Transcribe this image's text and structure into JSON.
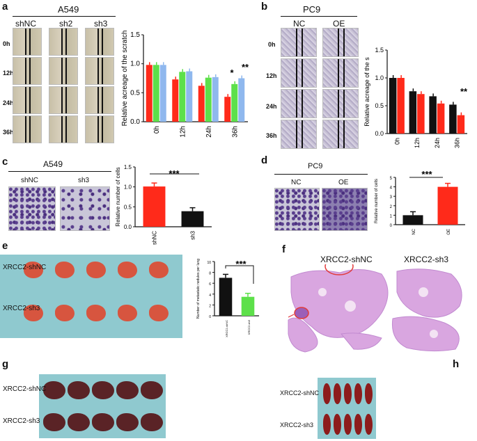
{
  "panels": {
    "a": {
      "label": "a",
      "title": "A549",
      "cols": [
        "shNC",
        "sh2",
        "sh3"
      ],
      "rows": [
        "0h",
        "12h",
        "24h",
        "36h"
      ]
    },
    "b": {
      "label": "b",
      "title": "PC9",
      "cols": [
        "NC",
        "OE"
      ],
      "rows": [
        "0h",
        "12h",
        "24h",
        "36h"
      ]
    },
    "c": {
      "label": "c",
      "title": "A549",
      "cols": [
        "shNC",
        "sh3"
      ]
    },
    "d": {
      "label": "d",
      "title": "PC9",
      "cols": [
        "NC",
        "OE"
      ]
    },
    "e": {
      "label": "e",
      "rows": [
        "XRCC2-shNC",
        "XRCC2-sh3"
      ]
    },
    "f": {
      "label": "f",
      "cols": [
        "XRCC2-shNC",
        "XRCC2-sh3"
      ]
    },
    "g": {
      "label": "g",
      "rows": [
        "XRCC2-shNC",
        "XRCC2-sh3"
      ]
    },
    "h": {
      "label": "h",
      "rows": [
        "XRCC2-shNC",
        "XRCC2-sh3"
      ]
    }
  },
  "chart_data": [
    {
      "id": "a",
      "type": "bar",
      "ylabel": "Relative acreage of the scratch",
      "categories": [
        "0h",
        "12h",
        "24h",
        "36h"
      ],
      "series": [
        {
          "values": [
            0.98,
            0.73,
            0.62,
            0.43
          ],
          "color": "#ff2a1a"
        },
        {
          "values": [
            0.98,
            0.86,
            0.76,
            0.65
          ],
          "color": "#5de04a"
        },
        {
          "values": [
            0.98,
            0.87,
            0.77,
            0.75
          ],
          "color": "#8fb8ee"
        }
      ],
      "ylim": [
        0,
        1.5
      ],
      "yticks": [
        "0.0",
        "0.5",
        "1.0",
        "1.5"
      ],
      "annotations": [
        "*",
        "**"
      ]
    },
    {
      "id": "b",
      "type": "bar",
      "ylabel": "Relative acreage of the s",
      "categories": [
        "0h",
        "12h",
        "24h",
        "36h"
      ],
      "series": [
        {
          "values": [
            1.0,
            0.76,
            0.67,
            0.52
          ],
          "color": "#111111"
        },
        {
          "values": [
            1.0,
            0.71,
            0.54,
            0.33
          ],
          "color": "#ff2a1a"
        }
      ],
      "ylim": [
        0,
        1.5
      ],
      "yticks": [
        "0.0",
        "0.5",
        "1.0",
        "1.5"
      ],
      "annotations": [
        "**"
      ]
    },
    {
      "id": "c",
      "type": "bar",
      "ylabel": "Relative number of cells",
      "categories": [
        "shNC",
        "sh3"
      ],
      "values": [
        1.01,
        0.39
      ],
      "colors": [
        "#ff2a1a",
        "#111111"
      ],
      "ylim": [
        0,
        1.5
      ],
      "yticks": [
        "0.0",
        "0.5",
        "1.0",
        "1.5"
      ],
      "annotations": [
        "***"
      ]
    },
    {
      "id": "d",
      "type": "bar",
      "ylabel": "Relative number of cells",
      "categories": [
        "NC",
        "OE"
      ],
      "values": [
        1.0,
        4.0
      ],
      "colors": [
        "#111111",
        "#ff2a1a"
      ],
      "ylim": [
        0,
        5
      ],
      "yticks": [
        "0",
        "1",
        "2",
        "3",
        "4",
        "5"
      ],
      "annotations": [
        "***"
      ]
    },
    {
      "id": "e",
      "type": "bar",
      "ylabel": "Number of metastatic nodules per lung",
      "categories": [
        "XRCC2-shNC",
        "XRCC2-sh3"
      ],
      "values": [
        7.0,
        3.5
      ],
      "colors": [
        "#111111",
        "#5de04a"
      ],
      "ylim": [
        0,
        10
      ],
      "yticks": [
        "0",
        "2",
        "4",
        "6",
        "8",
        "10"
      ],
      "annotations": [
        "***"
      ]
    }
  ]
}
